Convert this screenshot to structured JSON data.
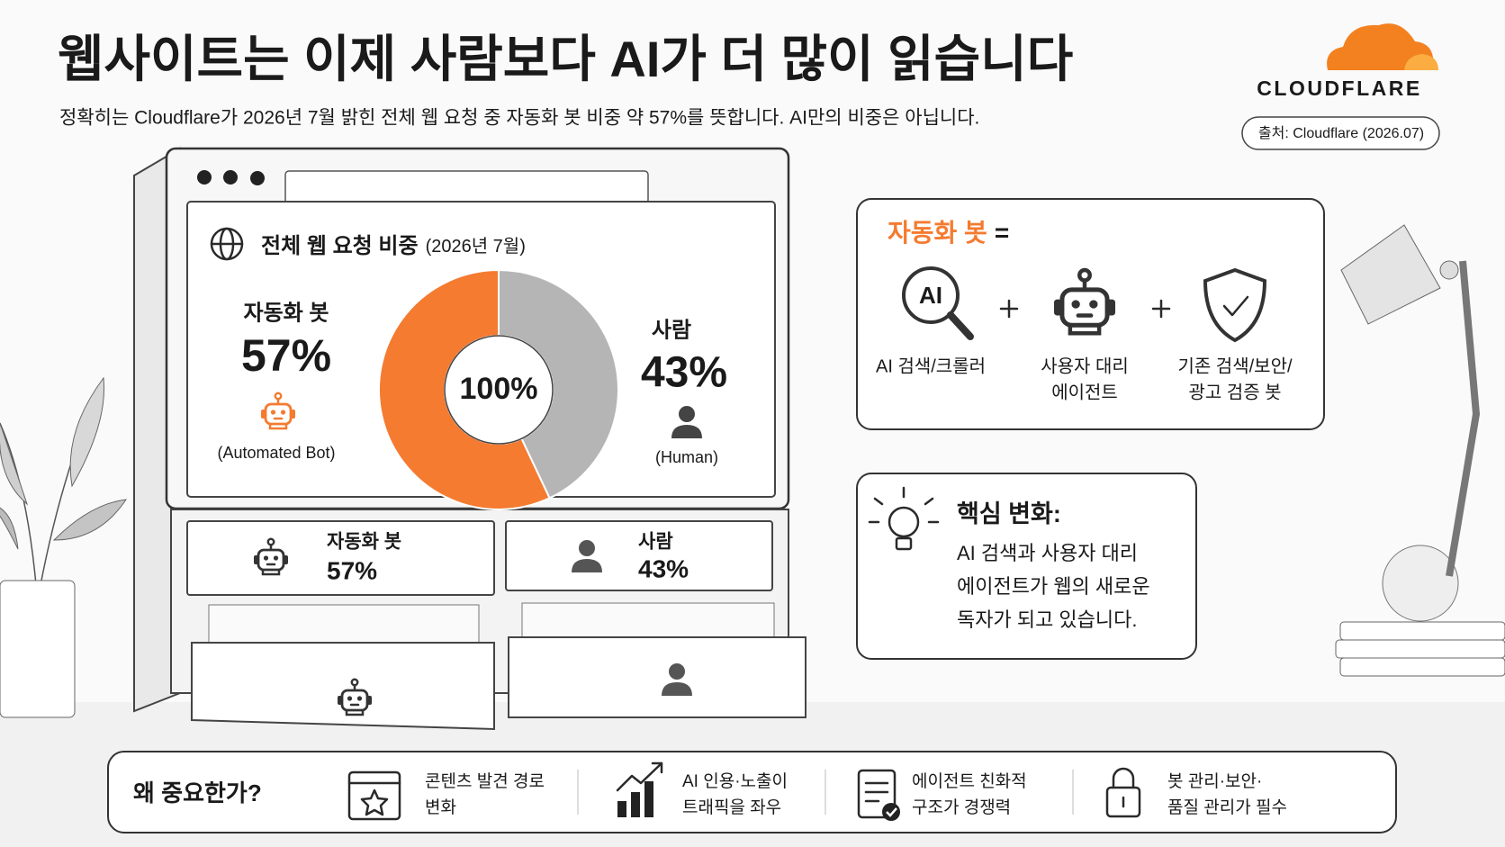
{
  "header": {
    "title": "웹사이트는 이제 사람보다 AI가 더 많이 읽습니다",
    "subtitle": "정확히는 Cloudflare가 2026년 7월 밝힌 전체 웹 요청 중 자동화 봇 비중 약 57%를 뜻합니다.  AI만의 비중은 아닙니다.",
    "logo": "CLOUDFLARE",
    "source": "출처: Cloudflare (2026.07)"
  },
  "chart_data": {
    "type": "pie",
    "title": "전체 웹 요청 비중",
    "subtitle": "(2026년 7월)",
    "center_label": "100%",
    "categories": [
      "자동화 봇",
      "사람"
    ],
    "values": [
      57,
      43
    ],
    "value_labels": [
      "57%",
      "43%"
    ],
    "category_notes": [
      "(Automated Bot)",
      "(Human)"
    ],
    "colors": [
      "#f47b30",
      "#b5b5b5"
    ]
  },
  "definition": {
    "term": "자동화 봇",
    "equals": "=",
    "items": [
      {
        "icon_text": "AI",
        "lines": [
          "AI 검색/크롤러"
        ]
      },
      {
        "lines": [
          "사용자 대리",
          "에이전트"
        ]
      },
      {
        "lines": [
          "기존 검색/보안/",
          "광고 검증 봇"
        ]
      }
    ]
  },
  "insight": {
    "title": "핵심 변화:",
    "lines": [
      "AI 검색과 사용자 대리",
      "에이전트가 웹의 새로운",
      "독자가 되고 있습니다."
    ]
  },
  "why": {
    "title": "왜 중요한가?",
    "items": [
      {
        "lines": [
          "콘텐츠 발견 경로",
          "변화"
        ]
      },
      {
        "lines": [
          "AI 인용·노출이",
          "트래픽을 좌우"
        ]
      },
      {
        "lines": [
          "에이전트 친화적",
          "구조가 경쟁력"
        ]
      },
      {
        "lines": [
          "봇 관리·보안·",
          "품질 관리가 필수"
        ]
      }
    ]
  }
}
